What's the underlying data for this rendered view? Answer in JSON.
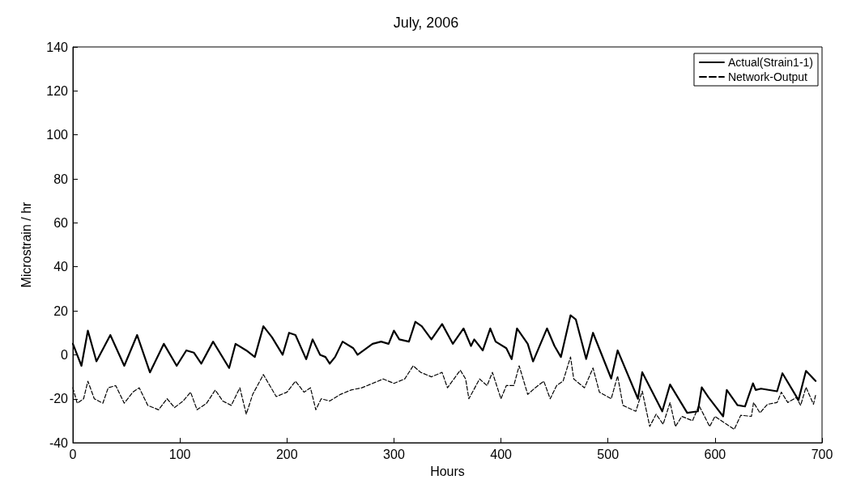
{
  "chart_data": {
    "type": "line",
    "title": "July, 2006",
    "xlabel": "Hours",
    "ylabel": "Microstrain / hr",
    "xlim": [
      0,
      700
    ],
    "xticks": [
      0,
      100,
      200,
      300,
      400,
      500,
      600,
      700
    ],
    "ylim": [
      -40,
      140
    ],
    "yticks": [
      -40,
      -20,
      0,
      20,
      40,
      60,
      80,
      100,
      120,
      140
    ],
    "grid": false,
    "legend": "top right",
    "marker": "none",
    "series": [
      {
        "name": "Actual(Strain1-1)",
        "color": "#000000",
        "line_style": "solid",
        "x": [
          0,
          8,
          14,
          22,
          35,
          48,
          60,
          72,
          85,
          97,
          106,
          113,
          120,
          131,
          146,
          152,
          162,
          170,
          178,
          186,
          196,
          202,
          208,
          218,
          224,
          231,
          236,
          240,
          245,
          252,
          262,
          266,
          280,
          288,
          295,
          300,
          305,
          314,
          320,
          326,
          335,
          345,
          355,
          365,
          372,
          375,
          383,
          390,
          395,
          405,
          410,
          415,
          425,
          430,
          443,
          450,
          456,
          465,
          470,
          479.6,
          486,
          503,
          509,
          528,
          532,
          550.7,
          558,
          574,
          584,
          587.6,
          594,
          607.6,
          611,
          621,
          628,
          635.5,
          638,
          643,
          658,
          663,
          678,
          685,
          694
        ],
        "values": [
          5,
          -5,
          11,
          -3,
          9,
          -5,
          9,
          -8,
          5,
          -5,
          2,
          1,
          -4,
          6,
          -6,
          5,
          2,
          -1,
          13,
          8,
          0,
          10,
          9,
          -2,
          7,
          0,
          -1,
          -4,
          -1,
          6,
          3,
          0,
          5,
          6,
          5,
          11,
          7,
          6,
          15,
          13,
          7,
          14,
          5,
          12,
          4,
          7,
          2,
          12,
          6,
          3,
          -2,
          12,
          5,
          -3,
          12,
          4,
          -1,
          18,
          16,
          -1.9,
          10,
          -10.8,
          2,
          -20,
          -7.9,
          -25.7,
          -13.5,
          -26.4,
          -25.7,
          -14.8,
          -19.4,
          -28,
          -16,
          -22.9,
          -23.5,
          -13,
          -16,
          -15.4,
          -16.6,
          -8.4,
          -20.6,
          -7.3,
          -11.9
        ]
      },
      {
        "name": "Network-Output",
        "color": "#000000",
        "line_style": "dashed",
        "x": [
          0,
          4,
          10,
          14,
          20,
          28,
          33,
          40,
          48,
          56,
          62,
          70,
          80,
          88,
          95,
          103,
          110,
          116,
          125,
          133,
          140,
          148,
          156,
          162,
          168,
          178,
          184,
          190,
          200,
          208,
          216,
          222,
          227,
          232,
          240,
          250,
          260,
          270,
          280,
          290,
          300,
          310,
          318,
          325,
          335,
          345,
          350,
          362,
          367,
          370,
          380,
          387,
          392,
          400,
          405,
          412,
          417,
          425,
          432,
          440,
          446,
          452,
          458,
          465,
          468,
          478,
          486,
          492,
          503,
          509,
          514,
          526,
          532,
          539,
          545,
          551.5,
          558,
          563,
          569,
          579,
          585,
          595,
          600,
          609,
          618,
          624,
          634,
          636,
          642,
          649,
          658,
          662,
          668,
          676,
          680,
          685,
          692,
          694
        ],
        "values": [
          -15,
          -22,
          -20,
          -12,
          -20,
          -22,
          -15,
          -14,
          -22,
          -17,
          -15,
          -23,
          -25,
          -20,
          -24,
          -21,
          -17,
          -25,
          -22,
          -16,
          -21,
          -23,
          -15,
          -27,
          -18,
          -9,
          -14,
          -19,
          -17,
          -12,
          -17,
          -15,
          -25,
          -20,
          -21,
          -18,
          -16,
          -15,
          -13,
          -11,
          -13,
          -11,
          -5,
          -8,
          -10,
          -8,
          -15,
          -7,
          -11,
          -20,
          -11,
          -14,
          -8,
          -20,
          -14,
          -14,
          -5,
          -18,
          -15,
          -12,
          -20,
          -14,
          -12,
          -1,
          -11,
          -15,
          -6,
          -17,
          -20,
          -9.6,
          -23,
          -25.7,
          -16.5,
          -32.6,
          -27,
          -31.6,
          -21.7,
          -32.6,
          -28,
          -30,
          -23,
          -32.6,
          -28,
          -31,
          -33.9,
          -27.5,
          -28,
          -21.7,
          -26.4,
          -22.5,
          -21.7,
          -17,
          -21.7,
          -19.4,
          -23,
          -14.8,
          -22.5,
          -18.3
        ]
      }
    ]
  }
}
